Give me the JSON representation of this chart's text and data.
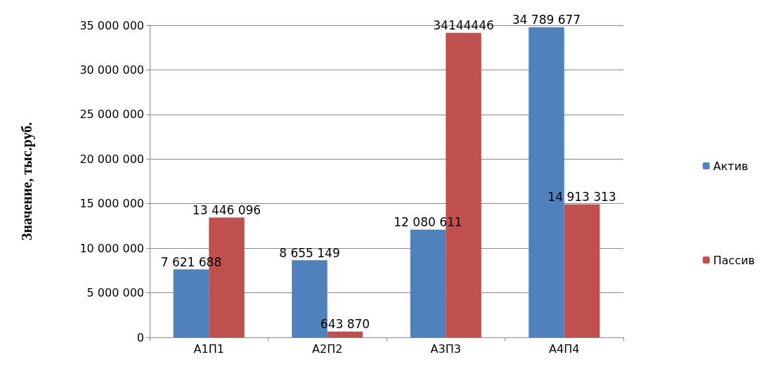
{
  "chart_data": {
    "type": "bar",
    "ylabel": "Значение, тыс.руб.",
    "categories": [
      "А1П1",
      "А2П2",
      "А3П3",
      "А4П4"
    ],
    "series": [
      {
        "name": "Актив",
        "color": "#4f81bd",
        "values": [
          7621688,
          8655149,
          12080611,
          34789677
        ],
        "value_labels": [
          "7 621 688",
          "8 655 149",
          "12 080 611",
          "34 789 677"
        ]
      },
      {
        "name": "Пассив",
        "color": "#c0504d",
        "values": [
          13446096,
          643870,
          34144446,
          14913313
        ],
        "value_labels": [
          "13 446 096",
          "643 870",
          "34144446",
          "14 913 313"
        ]
      }
    ],
    "ylim": [
      0,
      35000000
    ],
    "yticks": [
      0,
      {
        "value": 5000000,
        "label": "5 000 000"
      },
      {
        "value": 10000000,
        "label": "10 000 000"
      },
      {
        "value": 15000000,
        "label": "15 000 000"
      },
      {
        "value": 20000000,
        "label": "20 000 000"
      },
      {
        "value": 25000000,
        "label": "25 000 000"
      },
      {
        "value": 30000000,
        "label": "30 000 000"
      },
      {
        "value": 35000000,
        "label": "35 000 000"
      }
    ],
    "grid": "y",
    "legend": "right"
  }
}
